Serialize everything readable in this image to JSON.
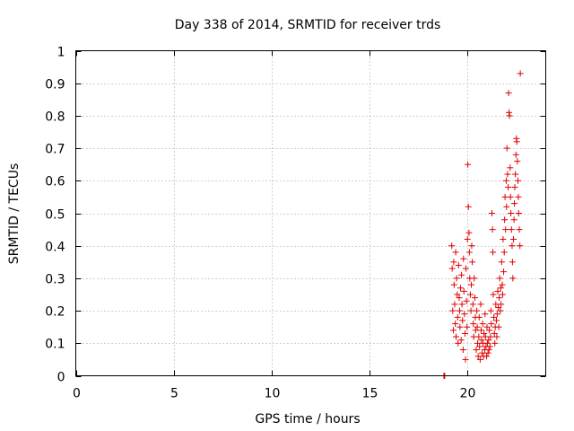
{
  "chart_data": {
    "type": "scatter",
    "title": "Day 338 of 2014, SRMTID for receiver trds",
    "xlabel": "GPS time / hours",
    "ylabel": "SRMTID / TECUs",
    "xlim": [
      0,
      24
    ],
    "ylim": [
      0,
      1
    ],
    "xticks": [
      0,
      5,
      10,
      15,
      20
    ],
    "xtick_labels": [
      "0",
      "5",
      "10",
      "15",
      "20"
    ],
    "yticks": [
      0,
      0.1,
      0.2,
      0.3,
      0.4,
      0.5,
      0.6,
      0.7,
      0.8,
      0.9,
      1
    ],
    "ytick_labels": [
      "0",
      "0.1",
      "0.2",
      "0.3",
      "0.4",
      "0.5",
      "0.6",
      "0.7",
      "0.8",
      "0.9",
      "1"
    ],
    "grid": true,
    "marker": "+",
    "color": "#e00000",
    "series": [
      {
        "name": "SRMTID",
        "x": [
          18.8,
          18.82,
          18.84,
          19.2,
          19.22,
          19.25,
          19.28,
          19.3,
          19.32,
          19.35,
          19.38,
          19.4,
          19.42,
          19.45,
          19.48,
          19.5,
          19.52,
          19.55,
          19.58,
          19.6,
          19.62,
          19.65,
          19.68,
          19.7,
          19.72,
          19.75,
          19.78,
          19.8,
          19.82,
          19.85,
          19.88,
          19.9,
          19.92,
          19.95,
          19.98,
          20.0,
          20.02,
          20.05,
          20.08,
          20.1,
          20.12,
          20.15,
          20.18,
          20.2,
          20.22,
          20.25,
          20.28,
          20.3,
          20.32,
          20.35,
          20.38,
          20.4,
          20.42,
          20.45,
          20.48,
          20.5,
          20.52,
          20.55,
          20.58,
          20.6,
          20.62,
          20.65,
          20.68,
          20.7,
          20.72,
          20.75,
          20.78,
          20.8,
          20.82,
          20.85,
          20.88,
          20.9,
          20.92,
          20.95,
          20.98,
          21.0,
          21.02,
          21.05,
          21.08,
          21.1,
          21.12,
          21.15,
          21.18,
          21.2,
          21.22,
          21.25,
          21.28,
          21.3,
          21.32,
          21.35,
          21.38,
          21.4,
          21.42,
          21.45,
          21.48,
          21.5,
          21.52,
          21.55,
          21.58,
          21.6,
          21.62,
          21.65,
          21.68,
          21.7,
          21.72,
          21.75,
          21.78,
          21.8,
          21.82,
          21.85,
          21.88,
          21.9,
          21.92,
          21.95,
          21.98,
          22.0,
          22.02,
          22.05,
          22.08,
          22.1,
          22.12,
          22.15,
          22.18,
          22.2,
          22.22,
          22.25,
          22.28,
          22.3,
          22.32,
          22.35,
          22.38,
          22.4,
          22.42,
          22.45,
          22.48,
          22.5,
          22.52,
          22.55,
          22.58,
          22.6,
          22.62,
          22.65,
          22.68,
          22.7
        ],
        "y": [
          0.0,
          0.0,
          0.0,
          0.4,
          0.33,
          0.2,
          0.14,
          0.35,
          0.28,
          0.22,
          0.16,
          0.38,
          0.12,
          0.3,
          0.25,
          0.18,
          0.1,
          0.34,
          0.24,
          0.2,
          0.15,
          0.27,
          0.11,
          0.31,
          0.22,
          0.17,
          0.08,
          0.36,
          0.26,
          0.19,
          0.13,
          0.05,
          0.33,
          0.23,
          0.15,
          0.42,
          0.65,
          0.52,
          0.44,
          0.38,
          0.3,
          0.25,
          0.2,
          0.28,
          0.4,
          0.35,
          0.22,
          0.16,
          0.12,
          0.3,
          0.24,
          0.18,
          0.14,
          0.08,
          0.2,
          0.15,
          0.1,
          0.06,
          0.12,
          0.18,
          0.09,
          0.05,
          0.22,
          0.14,
          0.11,
          0.07,
          0.16,
          0.1,
          0.06,
          0.13,
          0.08,
          0.19,
          0.12,
          0.09,
          0.06,
          0.15,
          0.1,
          0.07,
          0.11,
          0.08,
          0.14,
          0.09,
          0.12,
          0.2,
          0.16,
          0.5,
          0.45,
          0.38,
          0.25,
          0.18,
          0.13,
          0.1,
          0.15,
          0.22,
          0.17,
          0.12,
          0.19,
          0.26,
          0.21,
          0.15,
          0.24,
          0.3,
          0.2,
          0.27,
          0.22,
          0.35,
          0.28,
          0.25,
          0.42,
          0.32,
          0.38,
          0.48,
          0.55,
          0.45,
          0.6,
          0.52,
          0.7,
          0.62,
          0.58,
          0.87,
          0.81,
          0.8,
          0.64,
          0.55,
          0.5,
          0.45,
          0.4,
          0.35,
          0.3,
          0.42,
          0.48,
          0.53,
          0.58,
          0.62,
          0.68,
          0.73,
          0.72,
          0.66,
          0.6,
          0.55,
          0.5,
          0.45,
          0.4,
          0.93
        ]
      }
    ]
  }
}
